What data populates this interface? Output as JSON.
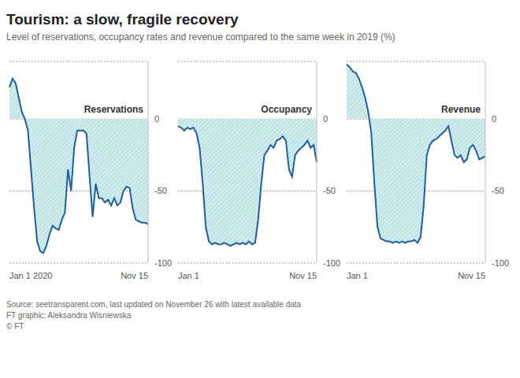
{
  "title": "Tourism: a slow, fragile recovery",
  "subtitle": "Level of reservations, occupancy rates and revenue compared to the same week in 2019 (%)",
  "source": "Source: seetransparent.com, last updated on November 26 with latest available data",
  "credit": "FT graphic: Aleksandra Wisniewska",
  "copyright": "© FT",
  "chart_data": [
    {
      "type": "area",
      "title": "Reservations",
      "categories": [
        "Jan 1 2020",
        null,
        null,
        null,
        null,
        null,
        null,
        null,
        null,
        null,
        null,
        null,
        null,
        null,
        null,
        null,
        null,
        null,
        null,
        null,
        null,
        null,
        null,
        null,
        null,
        null,
        null,
        null,
        null,
        null,
        null,
        null,
        null,
        null,
        null,
        null,
        null,
        null,
        null,
        null,
        null,
        null,
        null,
        null,
        null,
        "Nov 15"
      ],
      "values": [
        22,
        28,
        25,
        15,
        5,
        0,
        -8,
        -35,
        -62,
        -85,
        -92,
        -93,
        -88,
        -80,
        -74,
        -76,
        -77,
        -70,
        -65,
        -35,
        -50,
        -20,
        -8,
        -8,
        -8,
        -10,
        -40,
        -68,
        -45,
        -55,
        -55,
        -58,
        -56,
        -60,
        -55,
        -60,
        -58,
        -50,
        -47,
        -48,
        -62,
        -70,
        -71,
        -72,
        -72,
        -73
      ],
      "color": "#1f5f9e",
      "ylim": [
        -100,
        40
      ],
      "yticks": [
        -100,
        -50,
        0
      ],
      "grid": true
    },
    {
      "type": "area",
      "title": "Occupancy",
      "categories": [
        "Jan 1",
        null,
        null,
        null,
        null,
        null,
        null,
        null,
        null,
        null,
        null,
        null,
        null,
        null,
        null,
        null,
        null,
        null,
        null,
        null,
        null,
        null,
        null,
        null,
        null,
        null,
        null,
        null,
        null,
        null,
        null,
        null,
        null,
        null,
        null,
        null,
        null,
        null,
        null,
        null,
        null,
        null,
        null,
        null,
        null,
        "Nov 15"
      ],
      "values": [
        -5,
        -6,
        -8,
        -6,
        -7,
        -6,
        -10,
        -20,
        -45,
        -75,
        -85,
        -87,
        -86,
        -87,
        -87,
        -86,
        -87,
        -88,
        -87,
        -86,
        -87,
        -86,
        -87,
        -85,
        -87,
        -86,
        -70,
        -45,
        -25,
        -22,
        -18,
        -20,
        -15,
        -14,
        -12,
        -15,
        -35,
        -40,
        -25,
        -22,
        -20,
        -18,
        -15,
        -20,
        -18,
        -30
      ],
      "color": "#1f5f9e",
      "ylim": [
        -100,
        40
      ],
      "yticks": [
        -100,
        -50,
        0
      ],
      "grid": true
    },
    {
      "type": "area",
      "title": "Revenue",
      "categories": [
        "Jan 1",
        null,
        null,
        null,
        null,
        null,
        null,
        null,
        null,
        null,
        null,
        null,
        null,
        null,
        null,
        null,
        null,
        null,
        null,
        null,
        null,
        null,
        null,
        null,
        null,
        null,
        null,
        null,
        null,
        null,
        null,
        null,
        null,
        null,
        null,
        null,
        null,
        null,
        null,
        null,
        null,
        null,
        null,
        null,
        null,
        "Nov 15"
      ],
      "values": [
        38,
        36,
        33,
        32,
        28,
        22,
        15,
        5,
        -10,
        -45,
        -75,
        -83,
        -84,
        -85,
        -85,
        -86,
        -85,
        -86,
        -85,
        -86,
        -85,
        -85,
        -84,
        -86,
        -82,
        -60,
        -25,
        -18,
        -15,
        -14,
        -12,
        -10,
        -8,
        -5,
        -15,
        -25,
        -27,
        -25,
        -30,
        -28,
        -20,
        -18,
        -22,
        -28,
        -27,
        -26
      ],
      "color": "#1f5f9e",
      "ylim": [
        -100,
        40
      ],
      "yticks": [
        -100,
        -50,
        0
      ],
      "grid": true
    }
  ]
}
